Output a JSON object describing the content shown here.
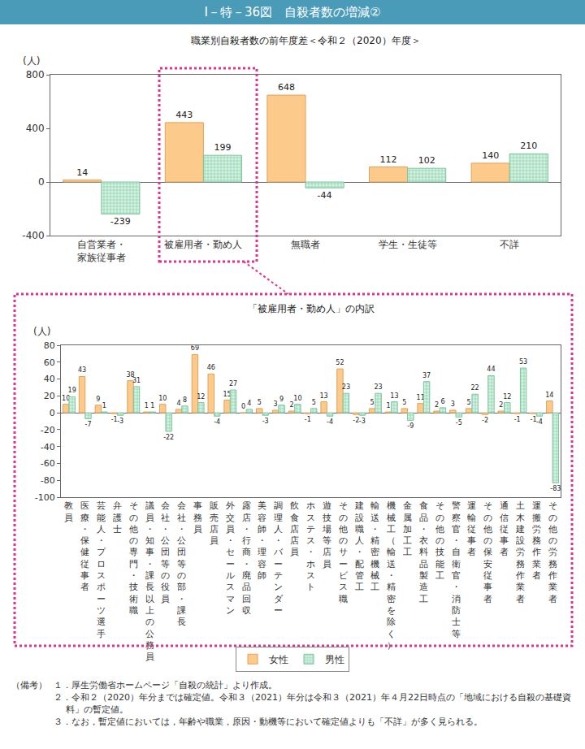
{
  "header": "Ⅰ－特－36図　自殺者数の増減②",
  "chart_data": [
    {
      "type": "bar",
      "title": "職業別自殺者数の前年度差＜令和２（2020）年度＞",
      "ylabel": "(人)",
      "categories": [
        "自営業者・\n家族従事者",
        "被雇用者・勤め人",
        "無職者",
        "学生・生徒等",
        "不詳"
      ],
      "series": [
        {
          "name": "女性",
          "color": "#fccb8c",
          "values": [
            14,
            443,
            648,
            112,
            140
          ]
        },
        {
          "name": "男性",
          "color": "#d6f1e2",
          "values": [
            -239,
            199,
            -44,
            102,
            210
          ]
        }
      ],
      "ylim": [
        -400,
        800
      ],
      "yticks": [
        -400,
        0,
        400,
        800
      ],
      "grid": false,
      "data_labels": true
    },
    {
      "type": "bar",
      "title": "「被雇用者・勤め人」の内訳",
      "ylabel": "(人)",
      "categories": [
        "教員",
        "医療・保健従事者",
        "芸能人・プロスポーツ選手",
        "弁護士",
        "その他の専門・技術職",
        "議員・知事・課長以上の公務員",
        "会社・公団等の役員",
        "会社・公団等の部・課長",
        "事務員",
        "販売店員",
        "外交員・セールスマン",
        "露店・行商・廃品回収",
        "美容師・理容師",
        "調理人・バーテンダー",
        "飲食店店員",
        "ホステス・ホスト",
        "遊技場等店員",
        "その他のサービス職",
        "建設職人・配管工",
        "輸送・精密機械工",
        "機械工（輸送・精密を除く）",
        "金属加工工",
        "食品・衣料品製造工",
        "その他の技能工",
        "警察官・自衛官・消防士等",
        "運輸従事者",
        "その他の保安従事者",
        "通信従事者",
        "土木建設労務作業者",
        "運搬労務作業者",
        "その他の労務作業者"
      ],
      "series": [
        {
          "name": "女性",
          "color": "#fccb8c",
          "values": [
            10,
            43,
            9,
            -1,
            38,
            1,
            10,
            4,
            69,
            46,
            15,
            0,
            5,
            3,
            2,
            -1,
            13,
            52,
            -2,
            5,
            1,
            5,
            11,
            2,
            3,
            5,
            -2,
            2,
            -1,
            -1,
            14
          ]
        },
        {
          "name": "男性",
          "color": "#d6f1e2",
          "values": [
            19,
            -7,
            1,
            -3,
            31,
            1,
            -22,
            8,
            12,
            -4,
            27,
            4,
            -3,
            9,
            10,
            5,
            -4,
            23,
            -3,
            23,
            13,
            -9,
            37,
            6,
            -5,
            22,
            44,
            12,
            53,
            -4,
            -83
          ]
        }
      ],
      "ylim": [
        -100,
        80
      ],
      "yticks": [
        -100,
        -80,
        -60,
        -40,
        -20,
        0,
        20,
        40,
        60,
        80
      ],
      "grid": false,
      "data_labels": true,
      "legend": "bottom"
    }
  ],
  "notes": {
    "label": "（備考）",
    "items": [
      "１．厚生労働省ホームページ「自殺の統計」より作成。",
      "２．令和２（2020）年分までは確定値。令和３（2021）年分は令和３（2021）年４月22日時点の「地域における自殺の基礎資料」の暫定値。",
      "３．なお，暫定値においては，年齢や職業，原因・動機等において確定値よりも「不詳」が多く見られる。"
    ]
  }
}
